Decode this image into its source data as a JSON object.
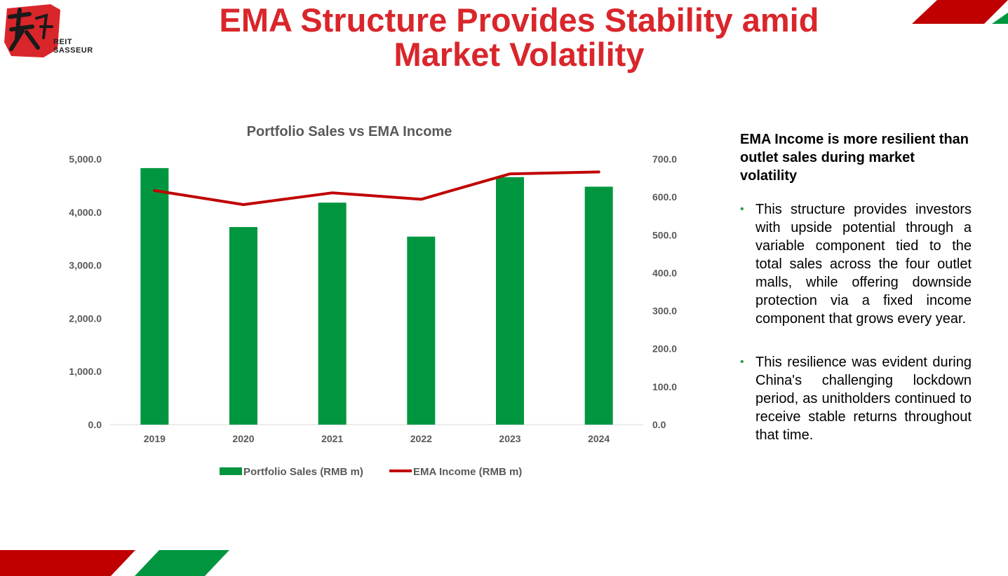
{
  "slide": {
    "title": "EMA Structure Provides Stability amid Market Volatility",
    "logo": {
      "line1": "REIT",
      "line2": "SASSEUR"
    },
    "colors": {
      "red": "#c00000",
      "green": "#00963f",
      "title_red": "#d9262b"
    }
  },
  "chart_data": {
    "type": "bar+line",
    "title": "Portfolio Sales vs EMA Income",
    "categories": [
      "2019",
      "2020",
      "2021",
      "2022",
      "2023",
      "2024"
    ],
    "series": [
      {
        "name": "Portfolio Sales (RMB m)",
        "type": "bar",
        "axis": "left",
        "color": "#00963f",
        "values": [
          4830,
          3720,
          4180,
          3540,
          4660,
          4480
        ]
      },
      {
        "name": "EMA Income (RMB m)",
        "type": "line",
        "axis": "right",
        "color": "#c00000",
        "values": [
          617,
          580,
          611,
          594,
          661,
          666
        ]
      }
    ],
    "y_left": {
      "min": 0,
      "max": 5000,
      "ticks": [
        "0.0",
        "1,000.0",
        "2,000.0",
        "3,000.0",
        "4,000.0",
        "5,000.0"
      ]
    },
    "y_right": {
      "min": 0,
      "max": 700,
      "ticks": [
        "0.0",
        "100.0",
        "200.0",
        "300.0",
        "400.0",
        "500.0",
        "600.0",
        "700.0"
      ]
    },
    "legend_position": "bottom"
  },
  "sidebar": {
    "heading": "EMA Income is more resilient than outlet sales during market volatility",
    "bullets": [
      "This structure provides investors with upside potential through a variable component tied to the  total sales across the four outlet malls, while offering downside protection via a fixed income component that grows every year.",
      "This resilience was evident during China's challenging lockdown period, as unitholders continued to receive stable returns throughout that time."
    ]
  }
}
